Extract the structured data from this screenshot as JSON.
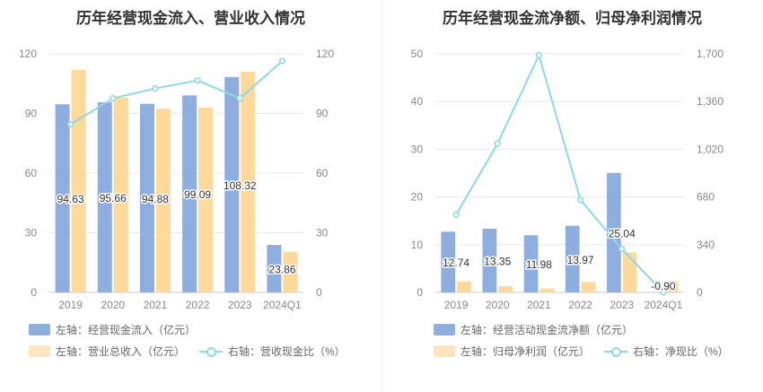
{
  "chart_data": [
    {
      "type": "bar",
      "title": "历年经营现金流入、营业收入情况",
      "categories": [
        "2019",
        "2020",
        "2021",
        "2022",
        "2023",
        "2024Q1"
      ],
      "series": [
        {
          "name": "左轴：经营现金流入（亿元）",
          "axis": "left",
          "type": "bar",
          "color": "#8eaee0",
          "values": [
            94.63,
            95.66,
            94.88,
            99.09,
            108.32,
            23.86
          ],
          "labels": [
            "94.63",
            "95.66",
            "94.88",
            "99.09",
            "108.32",
            "23.86"
          ]
        },
        {
          "name": "左轴：营业总收入（亿元）",
          "axis": "left",
          "type": "bar",
          "color": "#fdd99b",
          "values": [
            112,
            98,
            92.5,
            93,
            111,
            20.5
          ]
        },
        {
          "name": "右轴：营收现金比（%）",
          "axis": "right",
          "type": "line",
          "color": "#8fd9e0",
          "values": [
            84.5,
            97.6,
            102.6,
            106.6,
            97.6,
            116.4
          ]
        }
      ],
      "left_axis": {
        "ticks": [
          "0",
          "30",
          "60",
          "90",
          "120"
        ],
        "min": 0,
        "max": 120
      },
      "right_axis": {
        "ticks": [
          "0",
          "30",
          "60",
          "90",
          "120"
        ],
        "min": 0,
        "max": 120
      },
      "legend": "bottom"
    },
    {
      "type": "bar",
      "title": "历年经营现金流净额、归母净利润情况",
      "categories": [
        "2019",
        "2020",
        "2021",
        "2022",
        "2023",
        "2024Q1"
      ],
      "series": [
        {
          "name": "左轴：经营活动现金流净额（亿元）",
          "axis": "left",
          "type": "bar",
          "color": "#8eaee0",
          "values": [
            12.74,
            13.35,
            11.98,
            13.97,
            25.04,
            -0.9
          ],
          "labels": [
            "12.74",
            "13.35",
            "11.98",
            "13.97",
            "25.04",
            "-0.90"
          ]
        },
        {
          "name": "左轴：归母净利润（亿元）",
          "axis": "left",
          "type": "bar",
          "color": "#fdd99b",
          "values": [
            2.3,
            1.3,
            0.8,
            2.2,
            8.4,
            2.4
          ]
        },
        {
          "name": "右轴：净现比（%）",
          "axis": "right",
          "type": "line",
          "color": "#8fd9e0",
          "values": [
            554,
            1060,
            1690,
            660,
            310,
            0
          ]
        }
      ],
      "left_axis": {
        "ticks": [
          "0",
          "10",
          "20",
          "30",
          "40",
          "50"
        ],
        "min": 0,
        "max": 50
      },
      "right_axis": {
        "ticks": [
          "0",
          "340",
          "680",
          "1,020",
          "1,360",
          "1,700"
        ],
        "min": 0,
        "max": 1700
      },
      "legend": "bottom"
    }
  ]
}
